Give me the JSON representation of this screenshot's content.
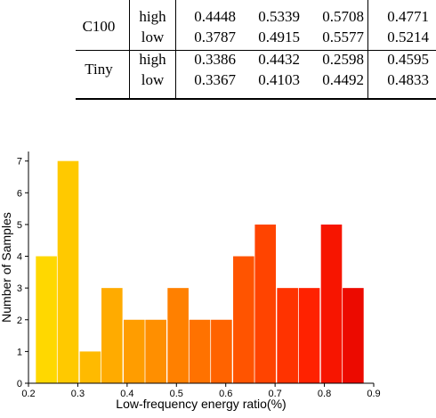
{
  "table": {
    "groups": [
      {
        "name": "C100",
        "rows": [
          {
            "label": "high",
            "values": [
              "0.4448",
              "0.5339",
              "0.5708",
              "0.4771"
            ]
          },
          {
            "label": "low",
            "values": [
              "0.3787",
              "0.4915",
              "0.5577",
              "0.5214"
            ]
          }
        ]
      },
      {
        "name": "Tiny",
        "rows": [
          {
            "label": "high",
            "values": [
              "0.3386",
              "0.4432",
              "0.2598",
              "0.4595"
            ]
          },
          {
            "label": "low",
            "values": [
              "0.3367",
              "0.4103",
              "0.4492",
              "0.4833"
            ]
          }
        ]
      }
    ]
  },
  "chart_data": {
    "type": "bar",
    "title": "",
    "xlabel": "Low-frequency energy ratio(%)",
    "ylabel": "Number of Samples",
    "xlim": [
      0.2,
      0.9
    ],
    "ylim": [
      0,
      7.3
    ],
    "xticks": [
      "0.2",
      "0.3",
      "0.4",
      "0.5",
      "0.6",
      "0.7",
      "0.8",
      "0.9"
    ],
    "yticks": [
      "0",
      "1",
      "2",
      "3",
      "4",
      "5",
      "6",
      "7"
    ],
    "bin_width": 0.0444,
    "bins": [
      {
        "start": 0.215,
        "value": 4
      },
      {
        "start": 0.259,
        "value": 7
      },
      {
        "start": 0.304,
        "value": 1
      },
      {
        "start": 0.348,
        "value": 3
      },
      {
        "start": 0.393,
        "value": 2
      },
      {
        "start": 0.437,
        "value": 2
      },
      {
        "start": 0.482,
        "value": 3
      },
      {
        "start": 0.526,
        "value": 2
      },
      {
        "start": 0.57,
        "value": 2
      },
      {
        "start": 0.615,
        "value": 4
      },
      {
        "start": 0.659,
        "value": 5
      },
      {
        "start": 0.704,
        "value": 3
      },
      {
        "start": 0.748,
        "value": 3
      },
      {
        "start": 0.793,
        "value": 5
      },
      {
        "start": 0.837,
        "value": 3
      }
    ],
    "colors": [
      "#ffd800",
      "#ffc900",
      "#ffba00",
      "#ffab00",
      "#ff9d00",
      "#ff8f00",
      "#ff8000",
      "#ff7200",
      "#ff6300",
      "#ff5400",
      "#ff4400",
      "#ff3300",
      "#ff2200",
      "#f71500",
      "#ec0a00"
    ]
  }
}
